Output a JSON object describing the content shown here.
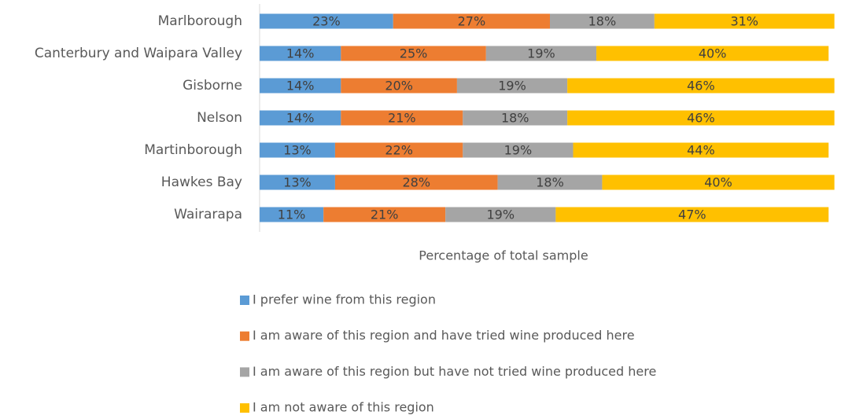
{
  "chart_data": {
    "type": "stacked_bar_horizontal",
    "x_label": "Percentage of total sample",
    "categories": [
      "Marlborough",
      "Canterbury and Waipara Valley",
      "Gisborne",
      "Nelson",
      "Martinborough",
      "Hawkes Bay",
      "Wairarapa"
    ],
    "xlim": [
      0,
      100
    ],
    "legend": "bottom",
    "series": [
      {
        "name": "I prefer wine from this region",
        "color": "#5b9bd5",
        "values": [
          23,
          14,
          14,
          14,
          13,
          13,
          11
        ],
        "value_labels": [
          "23%",
          "14%",
          "14%",
          "14%",
          "13%",
          "13%",
          "11%"
        ]
      },
      {
        "name": "I am aware of this region and have tried wine produced here",
        "color": "#ed7d31",
        "values": [
          27,
          25,
          20,
          21,
          22,
          28,
          21
        ],
        "value_labels": [
          "27%",
          "25%",
          "20%",
          "21%",
          "22%",
          "28%",
          "21%"
        ]
      },
      {
        "name": "I am aware of this region but have not tried wine produced here",
        "color": "#a5a5a5",
        "values": [
          18,
          19,
          19,
          18,
          19,
          18,
          19
        ],
        "value_labels": [
          "18%",
          "19%",
          "19%",
          "18%",
          "19%",
          "18%",
          "19%"
        ]
      },
      {
        "name": "I am not aware of this region",
        "color": "#ffc000",
        "values": [
          31,
          40,
          46,
          46,
          44,
          40,
          47
        ],
        "value_labels": [
          "31%",
          "40%",
          "46%",
          "46%",
          "44%",
          "40%",
          "47%"
        ]
      }
    ]
  }
}
